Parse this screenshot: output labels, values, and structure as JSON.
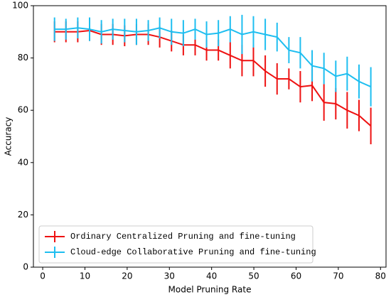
{
  "chart_data": {
    "type": "line",
    "x_label": "Model Pruning Rate",
    "y_label": "Accuracy",
    "x": [
      2.8,
      5.5,
      8.3,
      11.1,
      13.9,
      16.6,
      19.4,
      22.2,
      25.0,
      27.7,
      30.5,
      33.3,
      36.1,
      38.8,
      41.6,
      44.4,
      47.2,
      49.9,
      52.7,
      55.5,
      58.3,
      61.0,
      63.8,
      66.6,
      69.4,
      72.1,
      74.9,
      77.7
    ],
    "series": [
      {
        "name": "Ordinary Centralized Pruning and fine-tuning",
        "color": "#ee1111",
        "values": [
          90,
          90,
          90,
          90.5,
          89,
          89,
          88.5,
          89,
          89,
          88,
          86.5,
          85,
          85,
          83,
          83,
          81,
          79,
          79,
          75,
          72,
          72,
          69,
          69.5,
          63,
          62.5,
          60,
          58,
          54
        ],
        "errors": [
          4,
          4,
          4,
          4,
          4,
          4,
          4,
          4,
          4,
          4,
          4,
          4,
          4,
          4,
          4,
          5,
          6,
          6,
          6,
          6,
          4,
          6,
          6,
          7,
          6,
          7,
          6,
          7
        ]
      },
      {
        "name": "Cloud-edge Collaborative Pruning and fine-tuning",
        "color": "#1ebef0",
        "values": [
          91,
          91,
          91.5,
          91,
          90,
          91,
          90.5,
          90,
          90.5,
          91.5,
          90,
          89.5,
          91,
          89,
          89.5,
          91,
          89,
          90,
          89,
          88,
          83,
          82,
          77,
          76,
          73,
          74,
          71,
          69
        ],
        "errors": [
          4.5,
          4,
          4,
          4.5,
          4.5,
          4,
          4.5,
          5,
          4,
          4,
          5,
          5,
          4,
          5,
          5,
          5,
          7.5,
          6,
          6,
          5.5,
          5,
          6,
          6,
          6,
          6,
          6.5,
          6.5,
          7.5
        ]
      }
    ],
    "xlim": [
      -2.2,
      81.3
    ],
    "xticks": [
      0,
      10,
      20,
      30,
      40,
      50,
      60,
      70,
      80
    ],
    "ylim": [
      0,
      100
    ],
    "yticks": [
      0,
      20,
      40,
      60,
      80,
      100
    ],
    "legend": "lower left"
  }
}
